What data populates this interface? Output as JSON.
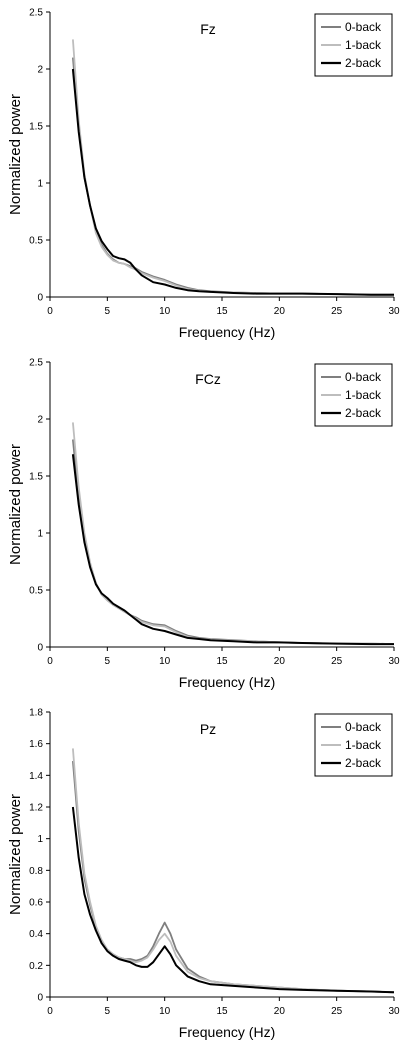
{
  "colors": {
    "0-back": "#7f7f7f",
    "1-back": "#bdbdbd",
    "2-back": "#000000",
    "axis": "#000000"
  },
  "chart_data": [
    {
      "type": "line",
      "title": "Fz",
      "xlabel": "Frequency (Hz)",
      "ylabel": "Normalized power",
      "xlim": [
        0,
        30
      ],
      "ylim": [
        0,
        2.5
      ],
      "xticks": [
        "0",
        "5",
        "10",
        "15",
        "20",
        "25",
        "30"
      ],
      "yticks": [
        "0",
        "0.5",
        "1",
        "1.5",
        "2",
        "2.5"
      ],
      "grid": false,
      "legend": "top-right",
      "x": [
        2,
        2.5,
        3,
        3.5,
        4,
        4.5,
        5,
        5.5,
        6,
        6.5,
        7,
        7.5,
        8,
        9,
        10,
        11,
        12,
        13,
        14,
        16,
        18,
        20,
        22,
        25,
        28,
        30
      ],
      "series": [
        {
          "name": "0-back",
          "values": [
            2.1,
            1.5,
            1.05,
            0.8,
            0.58,
            0.46,
            0.38,
            0.33,
            0.3,
            0.29,
            0.27,
            0.25,
            0.22,
            0.18,
            0.15,
            0.11,
            0.08,
            0.06,
            0.05,
            0.04,
            0.035,
            0.03,
            0.03,
            0.025,
            0.02,
            0.02
          ]
        },
        {
          "name": "1-back",
          "values": [
            2.26,
            1.55,
            1.08,
            0.8,
            0.56,
            0.44,
            0.37,
            0.32,
            0.3,
            0.29,
            0.26,
            0.24,
            0.21,
            0.17,
            0.14,
            0.1,
            0.07,
            0.055,
            0.045,
            0.04,
            0.035,
            0.03,
            0.03,
            0.025,
            0.02,
            0.02
          ]
        },
        {
          "name": "2-back",
          "values": [
            2.0,
            1.45,
            1.05,
            0.8,
            0.6,
            0.49,
            0.42,
            0.36,
            0.34,
            0.33,
            0.3,
            0.24,
            0.19,
            0.13,
            0.11,
            0.08,
            0.06,
            0.05,
            0.045,
            0.035,
            0.03,
            0.03,
            0.03,
            0.025,
            0.02,
            0.02
          ]
        }
      ]
    },
    {
      "type": "line",
      "title": "FCz",
      "xlabel": "Frequency (Hz)",
      "ylabel": "Normalized power",
      "xlim": [
        0,
        30
      ],
      "ylim": [
        0,
        2.5
      ],
      "xticks": [
        "0",
        "5",
        "10",
        "15",
        "20",
        "25",
        "30"
      ],
      "yticks": [
        "0",
        "0.5",
        "1",
        "1.5",
        "2",
        "2.5"
      ],
      "grid": false,
      "legend": "top-right",
      "x": [
        2,
        2.5,
        3,
        3.5,
        4,
        4.5,
        5,
        5.5,
        6,
        6.5,
        7,
        7.5,
        8,
        9,
        10,
        11,
        12,
        13,
        14,
        16,
        18,
        20,
        22,
        25,
        28,
        30
      ],
      "series": [
        {
          "name": "0-back",
          "values": [
            1.82,
            1.3,
            0.95,
            0.72,
            0.56,
            0.46,
            0.41,
            0.37,
            0.34,
            0.31,
            0.28,
            0.26,
            0.23,
            0.2,
            0.19,
            0.14,
            0.1,
            0.08,
            0.07,
            0.06,
            0.05,
            0.04,
            0.035,
            0.03,
            0.03,
            0.025
          ]
        },
        {
          "name": "1-back",
          "values": [
            1.97,
            1.4,
            1.0,
            0.74,
            0.56,
            0.46,
            0.41,
            0.37,
            0.34,
            0.31,
            0.28,
            0.25,
            0.22,
            0.19,
            0.18,
            0.13,
            0.09,
            0.07,
            0.065,
            0.055,
            0.05,
            0.04,
            0.035,
            0.03,
            0.03,
            0.025
          ]
        },
        {
          "name": "2-back",
          "values": [
            1.69,
            1.25,
            0.92,
            0.7,
            0.55,
            0.47,
            0.43,
            0.38,
            0.35,
            0.32,
            0.28,
            0.24,
            0.2,
            0.16,
            0.14,
            0.11,
            0.08,
            0.07,
            0.06,
            0.05,
            0.04,
            0.04,
            0.035,
            0.03,
            0.025,
            0.025
          ]
        }
      ]
    },
    {
      "type": "line",
      "title": "Pz",
      "xlabel": "Frequency (Hz)",
      "ylabel": "Normalized power",
      "xlim": [
        0,
        30
      ],
      "ylim": [
        0,
        1.8
      ],
      "xticks": [
        "0",
        "5",
        "10",
        "15",
        "20",
        "25",
        "30"
      ],
      "yticks": [
        "0",
        "0.2",
        "0.4",
        "0.6",
        "0.8",
        "1",
        "1.2",
        "1.4",
        "1.6",
        "1.8"
      ],
      "grid": false,
      "legend": "top-right",
      "x": [
        2,
        2.5,
        3,
        3.5,
        4,
        4.5,
        5,
        5.5,
        6,
        6.5,
        7,
        7.5,
        8,
        8.5,
        9,
        9.5,
        10,
        10.5,
        11,
        12,
        13,
        14,
        16,
        18,
        20,
        22,
        25,
        28,
        30
      ],
      "series": [
        {
          "name": "0-back",
          "values": [
            1.49,
            1.05,
            0.75,
            0.58,
            0.44,
            0.35,
            0.3,
            0.27,
            0.25,
            0.24,
            0.24,
            0.23,
            0.24,
            0.26,
            0.32,
            0.4,
            0.47,
            0.4,
            0.3,
            0.18,
            0.13,
            0.1,
            0.08,
            0.07,
            0.06,
            0.05,
            0.04,
            0.035,
            0.03
          ]
        },
        {
          "name": "1-back",
          "values": [
            1.57,
            1.1,
            0.78,
            0.6,
            0.45,
            0.36,
            0.3,
            0.27,
            0.25,
            0.24,
            0.23,
            0.22,
            0.23,
            0.25,
            0.3,
            0.36,
            0.4,
            0.35,
            0.26,
            0.16,
            0.12,
            0.1,
            0.08,
            0.07,
            0.06,
            0.05,
            0.04,
            0.035,
            0.03
          ]
        },
        {
          "name": "2-back",
          "values": [
            1.2,
            0.88,
            0.65,
            0.52,
            0.42,
            0.34,
            0.29,
            0.26,
            0.24,
            0.23,
            0.22,
            0.2,
            0.19,
            0.19,
            0.22,
            0.27,
            0.32,
            0.27,
            0.2,
            0.13,
            0.1,
            0.08,
            0.07,
            0.06,
            0.05,
            0.045,
            0.04,
            0.035,
            0.03
          ]
        }
      ]
    }
  ]
}
